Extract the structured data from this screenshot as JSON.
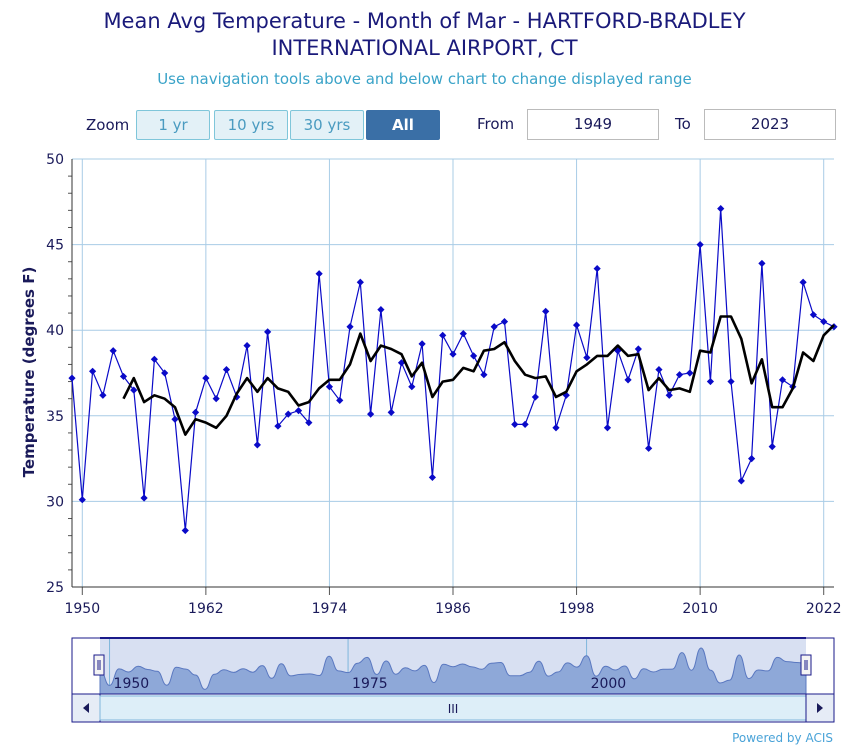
{
  "title_line1": "Mean Avg Temperature - Month of Mar - HARTFORD-BRADLEY",
  "title_line2": "INTERNATIONAL AIRPORT, CT",
  "subtitle": "Use navigation tools above and below chart to change displayed range",
  "zoom": {
    "label": "Zoom",
    "buttons": [
      "1 yr",
      "10 yrs",
      "30 yrs",
      "All"
    ],
    "active": "All"
  },
  "range": {
    "from_label": "From",
    "from_value": "1949",
    "to_label": "To",
    "to_value": "2023"
  },
  "powered_by": "Powered by ACIS",
  "colors": {
    "series": "#0a0ac8",
    "moving_average": "#000000",
    "grid": "#a8cce6",
    "axis_text": "#1a1a5a",
    "navigator_fill": "#8ea8d8",
    "navigator_border": "#1a1a8a"
  },
  "chart_data": {
    "type": "line",
    "title": "Mean Avg Temperature - Month of Mar - HARTFORD-BRADLEY INTERNATIONAL AIRPORT, CT",
    "xlabel": "",
    "ylabel": "Temperature (degrees F)",
    "ylim": [
      25,
      50
    ],
    "xlim": [
      1949,
      2023
    ],
    "x_ticks": [
      1950,
      1962,
      1974,
      1986,
      1998,
      2010,
      2022
    ],
    "y_ticks": [
      25,
      30,
      35,
      40,
      45,
      50
    ],
    "grid": true,
    "navigator": {
      "x_ticks": [
        1950,
        1975,
        2000
      ],
      "scroll_label": "III"
    },
    "series": [
      {
        "name": "",
        "color": "#0a0ac8",
        "marker": "diamond",
        "x": [
          1949,
          1950,
          1951,
          1952,
          1953,
          1954,
          1955,
          1956,
          1957,
          1958,
          1959,
          1960,
          1961,
          1962,
          1963,
          1964,
          1965,
          1966,
          1967,
          1968,
          1969,
          1970,
          1971,
          1972,
          1973,
          1974,
          1975,
          1976,
          1977,
          1978,
          1979,
          1980,
          1981,
          1982,
          1983,
          1984,
          1985,
          1986,
          1987,
          1988,
          1989,
          1990,
          1991,
          1992,
          1993,
          1994,
          1995,
          1996,
          1997,
          1998,
          1999,
          2000,
          2001,
          2002,
          2003,
          2004,
          2005,
          2006,
          2007,
          2008,
          2009,
          2010,
          2011,
          2012,
          2013,
          2014,
          2015,
          2016,
          2017,
          2018,
          2019,
          2020,
          2021,
          2022,
          2023
        ],
        "values": [
          37.2,
          30.1,
          37.6,
          36.2,
          38.8,
          37.3,
          36.5,
          30.2,
          38.3,
          37.5,
          34.8,
          28.3,
          35.2,
          37.2,
          36.0,
          37.7,
          36.1,
          39.1,
          33.3,
          39.9,
          34.4,
          35.1,
          35.3,
          34.6,
          43.3,
          36.7,
          35.9,
          40.2,
          42.8,
          35.1,
          41.2,
          35.2,
          38.1,
          36.7,
          39.2,
          31.4,
          39.7,
          38.6,
          39.8,
          38.5,
          37.4,
          40.2,
          40.5,
          34.5,
          34.5,
          36.1,
          41.1,
          34.3,
          36.2,
          40.3,
          38.4,
          43.6,
          34.3,
          38.8,
          37.1,
          38.9,
          33.1,
          37.7,
          36.2,
          37.4,
          37.5,
          45.0,
          37.0,
          47.1,
          37.0,
          31.2,
          32.5,
          43.9,
          33.2,
          37.1,
          36.7,
          42.8,
          40.9,
          40.5,
          40.2
        ]
      },
      {
        "name": "",
        "color": "#000000",
        "marker": "none",
        "x": [
          1954,
          1955,
          1956,
          1957,
          1958,
          1959,
          1960,
          1961,
          1962,
          1963,
          1964,
          1965,
          1966,
          1967,
          1968,
          1969,
          1970,
          1971,
          1972,
          1973,
          1974,
          1975,
          1976,
          1977,
          1978,
          1979,
          1980,
          1981,
          1982,
          1983,
          1984,
          1985,
          1986,
          1987,
          1988,
          1989,
          1990,
          1991,
          1992,
          1993,
          1994,
          1995,
          1996,
          1997,
          1998,
          1999,
          2000,
          2001,
          2002,
          2003,
          2004,
          2005,
          2006,
          2007,
          2008,
          2009,
          2010,
          2011,
          2012,
          2013,
          2014,
          2015,
          2016,
          2017,
          2018,
          2019,
          2020,
          2021,
          2022,
          2023
        ],
        "values": [
          36.0,
          37.2,
          35.8,
          36.2,
          36.0,
          35.5,
          33.9,
          34.8,
          34.6,
          34.3,
          35.0,
          36.3,
          37.2,
          36.4,
          37.2,
          36.6,
          36.4,
          35.6,
          35.8,
          36.6,
          37.1,
          37.1,
          38.0,
          39.8,
          38.2,
          39.1,
          38.9,
          38.6,
          37.3,
          38.1,
          36.1,
          37.0,
          37.1,
          37.8,
          37.6,
          38.8,
          38.9,
          39.3,
          38.2,
          37.4,
          37.2,
          37.3,
          36.1,
          36.4,
          37.6,
          38.0,
          38.5,
          38.5,
          39.1,
          38.5,
          38.6,
          36.5,
          37.2,
          36.5,
          36.6,
          36.4,
          38.8,
          38.7,
          40.8,
          40.8,
          39.5,
          36.9,
          38.3,
          35.5,
          35.5,
          36.6,
          38.7,
          38.2,
          39.7,
          40.3
        ]
      }
    ]
  }
}
